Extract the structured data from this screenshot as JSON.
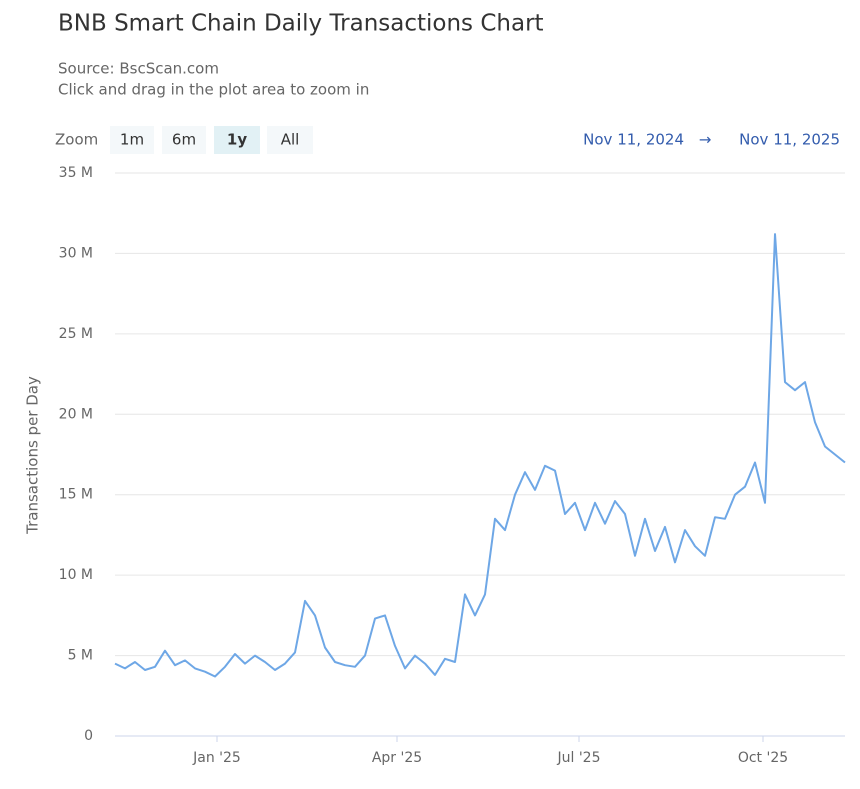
{
  "chart_data": {
    "type": "line",
    "title": "BNB Smart Chain Daily Transactions Chart",
    "subtitle": [
      "Source: BscScan.com",
      "Click and drag in the plot area to zoom in"
    ],
    "zoom_label": "Zoom",
    "zoom_buttons": [
      "1m",
      "6m",
      "1y",
      "All"
    ],
    "selected_zoom": "1y",
    "range": {
      "from": "Nov 11, 2024",
      "arrow": "→",
      "to": "Nov 11, 2025"
    },
    "y_label": "Transactions per Day",
    "color": "#6ea7e6",
    "grid": true,
    "xlim": [
      "2024-11-11",
      "2025-11-11"
    ],
    "xticks": [
      {
        "value": "2025-01-01",
        "label": "Jan '25"
      },
      {
        "value": "2025-04-01",
        "label": "Apr '25"
      },
      {
        "value": "2025-07-01",
        "label": "Jul '25"
      },
      {
        "value": "2025-10-01",
        "label": "Oct '25"
      }
    ],
    "ylim": [
      0,
      35000000
    ],
    "yticks": [
      0,
      {
        "value": 5000000,
        "label": "5 M"
      },
      {
        "value": 10000000,
        "label": "10 M"
      },
      {
        "value": 15000000,
        "label": "15 M"
      },
      {
        "value": 20000000,
        "label": "20 M"
      },
      {
        "value": 25000000,
        "label": "25 M"
      },
      {
        "value": 30000000,
        "label": "30 M"
      },
      {
        "value": 35000000,
        "label": "35 M"
      }
    ],
    "x": [
      "2024-11-11",
      "2024-11-16",
      "2024-11-21",
      "2024-11-26",
      "2024-12-01",
      "2024-12-06",
      "2024-12-11",
      "2024-12-16",
      "2024-12-21",
      "2024-12-26",
      "2024-12-31",
      "2025-01-05",
      "2025-01-10",
      "2025-01-15",
      "2025-01-20",
      "2025-01-25",
      "2025-01-30",
      "2025-02-04",
      "2025-02-09",
      "2025-02-14",
      "2025-02-19",
      "2025-02-24",
      "2025-03-01",
      "2025-03-06",
      "2025-03-11",
      "2025-03-16",
      "2025-03-21",
      "2025-03-26",
      "2025-03-31",
      "2025-04-05",
      "2025-04-10",
      "2025-04-15",
      "2025-04-20",
      "2025-04-25",
      "2025-04-30",
      "2025-05-05",
      "2025-05-10",
      "2025-05-15",
      "2025-05-20",
      "2025-05-25",
      "2025-05-30",
      "2025-06-04",
      "2025-06-09",
      "2025-06-14",
      "2025-06-19",
      "2025-06-24",
      "2025-06-29",
      "2025-07-04",
      "2025-07-09",
      "2025-07-14",
      "2025-07-19",
      "2025-07-24",
      "2025-07-29",
      "2025-08-03",
      "2025-08-08",
      "2025-08-13",
      "2025-08-18",
      "2025-08-23",
      "2025-08-28",
      "2025-09-02",
      "2025-09-07",
      "2025-09-12",
      "2025-09-17",
      "2025-09-22",
      "2025-09-27",
      "2025-10-02",
      "2025-10-07",
      "2025-10-12",
      "2025-10-17",
      "2025-10-22",
      "2025-10-27",
      "2025-11-01",
      "2025-11-06",
      "2025-11-11"
    ],
    "values": [
      4500000,
      4200000,
      4600000,
      4100000,
      4300000,
      5300000,
      4400000,
      4700000,
      4200000,
      4000000,
      3700000,
      4300000,
      5100000,
      4500000,
      5000000,
      4600000,
      4100000,
      4500000,
      5200000,
      8400000,
      7500000,
      5500000,
      4600000,
      4400000,
      4300000,
      5000000,
      7300000,
      7500000,
      5600000,
      4200000,
      5000000,
      4500000,
      3800000,
      4800000,
      4600000,
      8800000,
      7500000,
      8800000,
      13500000,
      12800000,
      15000000,
      16400000,
      15300000,
      16800000,
      16500000,
      13800000,
      14500000,
      12800000,
      14500000,
      13200000,
      14600000,
      13800000,
      11200000,
      13500000,
      11500000,
      13000000,
      10800000,
      12800000,
      11800000,
      11200000,
      13600000,
      13500000,
      15000000,
      15500000,
      17000000,
      14500000,
      31200000,
      22000000,
      21500000,
      22000000,
      19500000,
      18000000,
      17500000,
      17000000
    ]
  }
}
